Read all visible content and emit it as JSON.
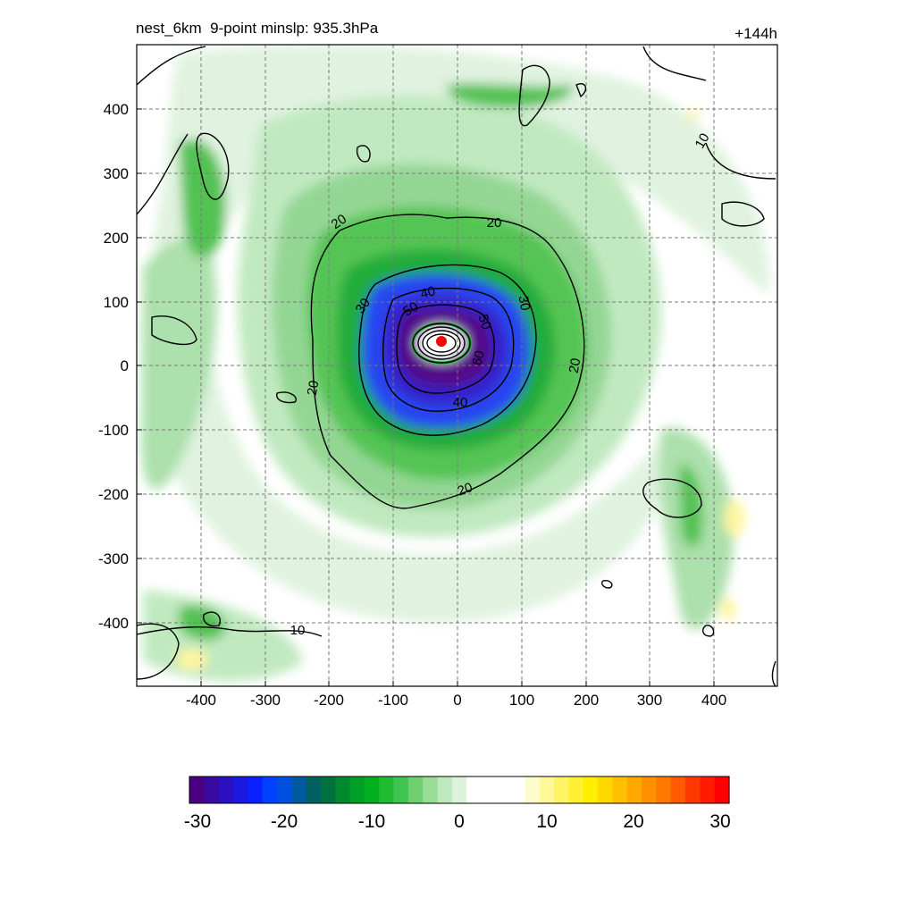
{
  "header": {
    "title": "nest_6km  9-point minslp: 935.3hPa",
    "forecast_hour": "+144h"
  },
  "map": {
    "x_ticks": [
      "-400",
      "-300",
      "-200",
      "-100",
      "0",
      "100",
      "200",
      "300",
      "400"
    ],
    "y_ticks": [
      "400",
      "300",
      "200",
      "100",
      "0",
      "-100",
      "-200",
      "-300",
      "-400"
    ],
    "contour_labels": [
      "10",
      "10",
      "20",
      "20",
      "20",
      "20",
      "20",
      "30",
      "30",
      "40",
      "40",
      "50",
      "50",
      "60"
    ],
    "center_marker_color": "#ff0000"
  },
  "colorbar": {
    "tick_labels": [
      "-30",
      "-20",
      "-10",
      "0",
      "10",
      "20",
      "30"
    ],
    "colors": [
      "#4b0082",
      "#3a0a9e",
      "#2a10c0",
      "#1b18e0",
      "#0a20ff",
      "#0040ff",
      "#0050e0",
      "#005aa0",
      "#006060",
      "#007040",
      "#008a30",
      "#00a028",
      "#00b020",
      "#20bb30",
      "#40c450",
      "#70d070",
      "#98dc98",
      "#bfe8bf",
      "#ddf2dd",
      "#ffffff",
      "#ffffff",
      "#ffffff",
      "#ffffff",
      "#fffccc",
      "#fff899",
      "#fff466",
      "#fff033",
      "#ffee00",
      "#ffd800",
      "#ffc000",
      "#ffa800",
      "#ff9000",
      "#ff7800",
      "#ff5a00",
      "#ff3800",
      "#ff1a00",
      "#ff0000"
    ]
  },
  "chart_data": {
    "type": "heatmap",
    "title": "nest_6km  9-point minslp: 935.3hPa",
    "xlim": [
      -500,
      500
    ],
    "ylim": [
      -500,
      500
    ],
    "colorbar_range": [
      -30,
      30
    ],
    "contour_levels": [
      10,
      20,
      30,
      40,
      50,
      60
    ],
    "center": {
      "x": -25,
      "y": 35
    },
    "grid": true
  }
}
